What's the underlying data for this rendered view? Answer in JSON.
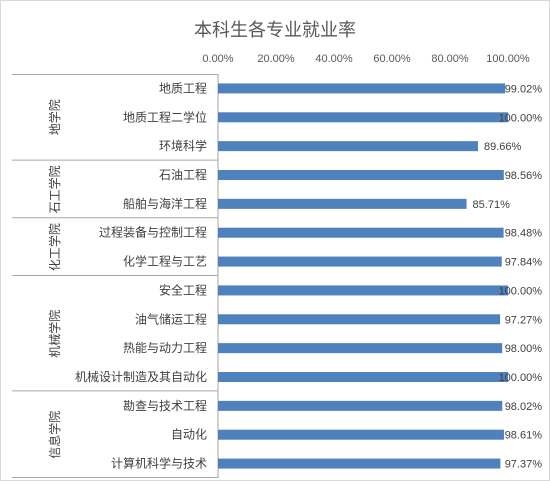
{
  "chart_data": {
    "type": "bar",
    "orientation": "horizontal",
    "title": "本科生各专业就业率",
    "x_axis": {
      "position": "top",
      "range": [
        0,
        100
      ],
      "tick_values": [
        0,
        20,
        40,
        60,
        80,
        100
      ],
      "tick_labels": [
        "0.00%",
        "20.00%",
        "40.00%",
        "60.00%",
        "80.00%",
        "100.00%"
      ]
    },
    "grid": false,
    "legend": "none",
    "bar_color": "#4F81BD",
    "groups": [
      {
        "name": "地学院",
        "categories": [
          "地质工程",
          "地质工程二学位",
          "环境科学"
        ],
        "values": [
          99.02,
          100.0,
          89.66
        ]
      },
      {
        "name": "石工学院",
        "categories": [
          "石油工程",
          "船舶与海洋工程"
        ],
        "values": [
          98.56,
          85.71
        ]
      },
      {
        "name": "化工学院",
        "categories": [
          "过程装备与控制工程",
          "化学工程与工艺"
        ],
        "values": [
          98.48,
          97.84
        ]
      },
      {
        "name": "机械学院",
        "categories": [
          "安全工程",
          "油气储运工程",
          "热能与动力工程",
          "机械设计制造及其自动化"
        ],
        "values": [
          100.0,
          97.27,
          98.0,
          100.0
        ]
      },
      {
        "name": "信息学院",
        "categories": [
          "勘查与技术工程",
          "自动化",
          "计算机科学与技术"
        ],
        "values": [
          98.02,
          98.61,
          97.37
        ]
      }
    ]
  }
}
